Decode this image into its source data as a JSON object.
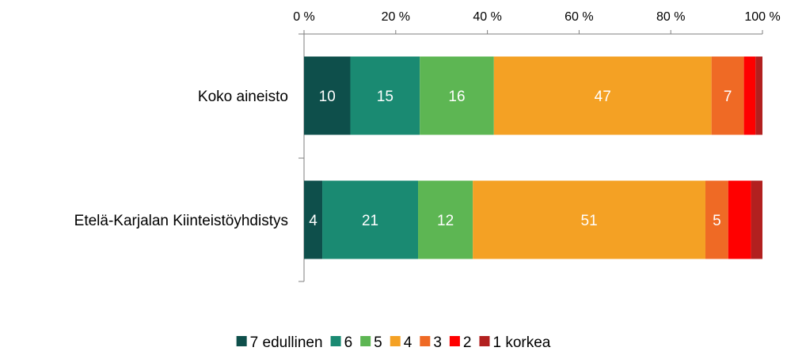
{
  "chart_data": {
    "type": "bar",
    "orientation": "horizontal",
    "stacked": "percent",
    "categories": [
      "Koko aineisto",
      "Etelä-Karjalan Kiinteistöyhdistys"
    ],
    "series": [
      {
        "name": "7 edullinen",
        "color": "#0E4F4B",
        "values": [
          10,
          4
        ],
        "labels": [
          "10",
          "4"
        ]
      },
      {
        "name": "6",
        "color": "#1A8A72",
        "values": [
          15,
          21
        ],
        "labels": [
          "15",
          "21"
        ]
      },
      {
        "name": "5",
        "color": "#5DB653",
        "values": [
          16,
          12
        ],
        "labels": [
          "16",
          "12"
        ]
      },
      {
        "name": "4",
        "color": "#F4A124",
        "values": [
          47,
          51
        ],
        "labels": [
          "47",
          "51"
        ]
      },
      {
        "name": "3",
        "color": "#EF6A25",
        "values": [
          7,
          5
        ],
        "labels": [
          "7",
          "5"
        ]
      },
      {
        "name": "2",
        "color": "#FF0000",
        "values": [
          2.5,
          5
        ],
        "labels": [
          "",
          ""
        ]
      },
      {
        "name": "1 korkea",
        "color": "#B2201F",
        "values": [
          1.5,
          2.5
        ],
        "labels": [
          "",
          ""
        ]
      }
    ],
    "xlim": [
      0,
      100
    ],
    "x_ticks": [
      "0 %",
      "20 %",
      "40 %",
      "60 %",
      "80 %",
      "100 %"
    ],
    "x_tick_values": [
      0,
      20,
      40,
      60,
      80,
      100
    ],
    "x_axis_position": "top",
    "legend_position": "bottom",
    "grid": false,
    "title": "",
    "xlabel": "",
    "ylabel": ""
  }
}
